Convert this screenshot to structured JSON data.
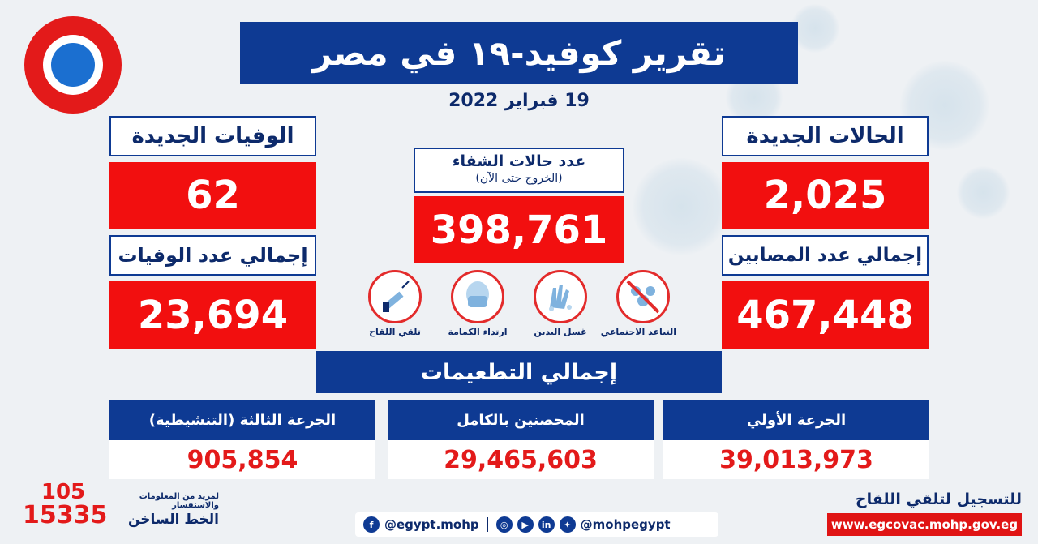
{
  "title": "تقرير كوفيد-١٩ في مصر",
  "date": "19 فبراير 2022",
  "new_cases": {
    "label": "الحالات الجديدة",
    "value": "2,025"
  },
  "total_cases": {
    "label": "إجمالي عدد المصابين",
    "value": "467,448"
  },
  "new_deaths": {
    "label": "الوفيات الجديدة",
    "value": "62"
  },
  "total_deaths": {
    "label": "إجمالي عدد الوفيات",
    "value": "23,694"
  },
  "recovered": {
    "label": "عدد حالات الشفاء",
    "sublabel": "(الخروج حتى الآن)",
    "value": "398,761"
  },
  "precautions": [
    {
      "icon": "social-distancing-icon",
      "label": "التباعد الاجتماعي"
    },
    {
      "icon": "hand-washing-icon",
      "label": "غسل اليدين"
    },
    {
      "icon": "face-mask-icon",
      "label": "ارتداء الكمامة"
    },
    {
      "icon": "vaccine-syringe-icon",
      "label": "تلقي اللقاح"
    }
  ],
  "vaccinations": {
    "title": "إجمالي التطعيمات",
    "first_dose": {
      "label": "الجرعة الأولي",
      "value": "39,013,973"
    },
    "fully_vaccinated": {
      "label": "المحصنين بالكامل",
      "value": "29,465,603"
    },
    "booster": {
      "label": "الجرعة الثالثة (التنشيطية)",
      "value": "905,854"
    }
  },
  "footer": {
    "register_label": "للتسجيل لتلقي اللقاح",
    "website": "www.egcovac.mohp.gov.eg",
    "social_handle_1": "@mohpegypt",
    "social_handle_2": "@egypt.mohp",
    "hotline_small": "لمزيد من المعلومات والاستفسار",
    "hotline_label": "الخط الساخن",
    "hotline_1": "105",
    "hotline_2": "15335"
  },
  "colors": {
    "blue": "#0e3a93",
    "red": "#f20f0f",
    "background": "#eef1f4"
  }
}
